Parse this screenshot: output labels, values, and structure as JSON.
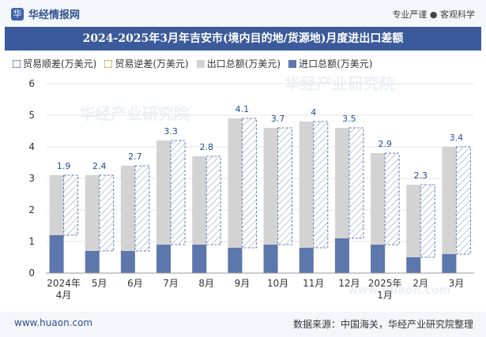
{
  "header": {
    "logo_text": "华",
    "site_name": "华经情报网",
    "tagline": "专业严谨 ● 客观科学"
  },
  "title": "2024-2025年3月年吉安市(境内目的地/货源地)月度进出口差额",
  "legend": {
    "surplus": "贸易顺差(万美元)",
    "deficit": "贸易逆差(万美元)",
    "total": "出口总额(万美元)",
    "import": "进口总额(万美元)"
  },
  "footer": {
    "url": "www.huaon.com",
    "source": "数据来源：中国海关，华经产业研究院整理"
  },
  "watermarks": {
    "w1": "华经产业研究院",
    "w2": "华经产业研究院",
    "w3": "www.huaon.com"
  },
  "colors": {
    "title_bg": "#3a5a9b",
    "total": "#d3d3d3",
    "import": "#5c77ab",
    "surplus_stroke": "#6a7fb0",
    "label": "#1f4e8c"
  },
  "chart_data": {
    "type": "bar",
    "categories": [
      "2024年\n4月",
      "5月",
      "6月",
      "7月",
      "8月",
      "9月",
      "10月",
      "11月",
      "12月",
      "2025年\n1月",
      "2月",
      "3月"
    ],
    "ylim": [
      0,
      6
    ],
    "yticks": [
      0,
      1,
      2,
      3,
      4,
      5,
      6
    ],
    "series": [
      {
        "name": "出口总额(万美元)",
        "values": [
          3.1,
          3.1,
          3.4,
          4.2,
          3.7,
          4.9,
          4.6,
          4.8,
          4.6,
          3.8,
          2.8,
          4.0
        ]
      },
      {
        "name": "进口总额(万美元)",
        "values": [
          1.2,
          0.7,
          0.7,
          0.9,
          0.9,
          0.8,
          0.9,
          0.8,
          1.1,
          0.9,
          0.5,
          0.6
        ]
      },
      {
        "name": "贸易顺差(万美元)",
        "values": [
          1.9,
          2.4,
          2.7,
          3.3,
          2.8,
          4.1,
          3.7,
          4.0,
          3.5,
          2.9,
          2.3,
          3.4
        ]
      },
      {
        "name": "贸易逆差(万美元)",
        "values": [
          0,
          0,
          0,
          0,
          0,
          0,
          0,
          0,
          0,
          0,
          0,
          0
        ]
      }
    ],
    "data_labels": [
      "1.9",
      "2.4",
      "2.7",
      "3.3",
      "2.8",
      "4.1",
      "3.7",
      "4",
      "3.5",
      "2.9",
      "2.3",
      "3.4"
    ]
  }
}
